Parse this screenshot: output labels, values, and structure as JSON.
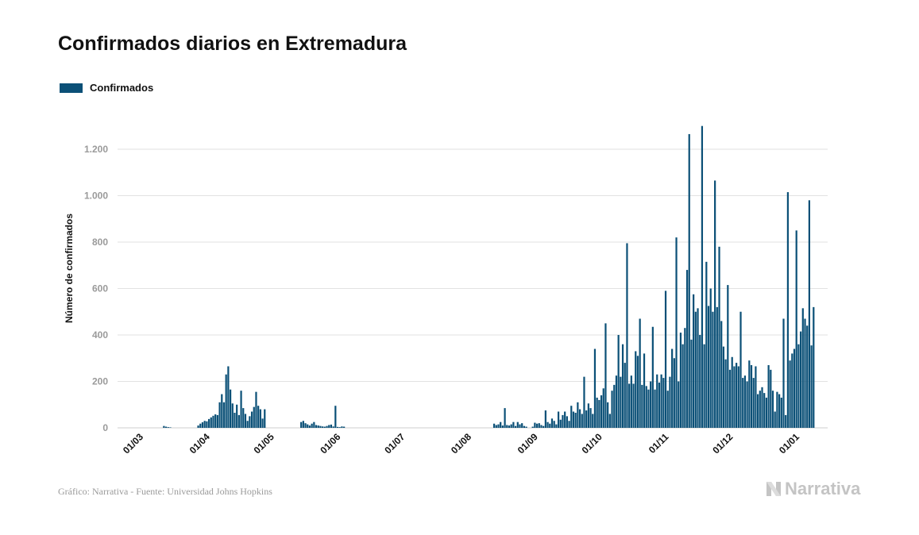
{
  "title": "Confirmados diarios en Extremadura",
  "legend": {
    "label": "Confirmados"
  },
  "colors": {
    "bar": "#0b5077",
    "grid": "#e2e2e2",
    "muted": "#9a9a9a"
  },
  "source": "Gráfico: Narrativa - Fuente: Universidad Johns Hopkins",
  "brand": {
    "name": "Narrativa",
    "icon": "narrativa-logo-icon"
  },
  "chart_data": {
    "type": "bar",
    "title": "Confirmados diarios en Extremadura",
    "ylabel": "Número de confirmados",
    "xlabel": "",
    "ylim": [
      0,
      1340
    ],
    "grid": true,
    "legend_position": "top-left",
    "yticks": [
      0,
      200,
      400,
      600,
      800,
      1000,
      1200
    ],
    "ytick_labels": [
      "0",
      "200",
      "400",
      "600",
      "800",
      "1.000",
      "1.200"
    ],
    "xticks": [
      "01/03",
      "01/04",
      "01/05",
      "01/06",
      "01/07",
      "01/08",
      "01/09",
      "01/10",
      "01/11",
      "01/12",
      "01/01"
    ],
    "x_start": "2020-03-01",
    "series": [
      {
        "name": "Confirmados",
        "values": [
          0,
          0,
          0,
          0,
          0,
          0,
          0,
          0,
          0,
          0,
          0,
          0,
          8,
          5,
          3,
          2,
          0,
          0,
          0,
          0,
          0,
          0,
          0,
          0,
          0,
          0,
          0,
          0,
          10,
          18,
          24,
          30,
          28,
          38,
          45,
          52,
          58,
          55,
          110,
          145,
          110,
          230,
          265,
          165,
          105,
          65,
          100,
          55,
          160,
          85,
          60,
          30,
          50,
          70,
          90,
          155,
          95,
          80,
          40,
          80,
          0,
          0,
          0,
          0,
          0,
          0,
          0,
          0,
          0,
          0,
          0,
          0,
          0,
          0,
          0,
          0,
          25,
          30,
          20,
          15,
          10,
          18,
          25,
          12,
          10,
          8,
          6,
          5,
          8,
          12,
          14,
          6,
          95,
          4,
          3,
          6,
          5,
          0,
          0,
          0,
          0,
          0,
          0,
          0,
          0,
          0,
          0,
          0,
          0,
          0,
          0,
          0,
          0,
          0,
          0,
          0,
          0,
          0,
          0,
          0,
          0,
          0,
          0,
          0,
          0,
          0,
          0,
          0,
          0,
          0,
          0,
          0,
          0,
          0,
          0,
          0,
          0,
          0,
          0,
          0,
          0,
          0,
          0,
          0,
          0,
          0,
          0,
          0,
          0,
          0,
          0,
          0,
          0,
          0,
          0,
          0,
          0,
          0,
          0,
          0,
          0,
          0,
          0,
          0,
          0,
          0,
          18,
          12,
          15,
          25,
          10,
          85,
          12,
          10,
          15,
          25,
          8,
          25,
          15,
          20,
          8,
          5,
          0,
          0,
          5,
          22,
          18,
          20,
          12,
          8,
          75,
          25,
          18,
          40,
          30,
          15,
          70,
          35,
          55,
          70,
          50,
          30,
          95,
          70,
          65,
          110,
          80,
          60,
          220,
          75,
          105,
          85,
          60,
          340,
          130,
          120,
          140,
          170,
          450,
          110,
          60,
          160,
          185,
          225,
          400,
          220,
          360,
          280,
          795,
          190,
          225,
          190,
          330,
          310,
          470,
          185,
          320,
          180,
          165,
          200,
          435,
          165,
          230,
          195,
          230,
          215,
          590,
          160,
          220,
          340,
          300,
          820,
          200,
          410,
          360,
          430,
          680,
          1265,
          380,
          575,
          500,
          515,
          400,
          1300,
          360,
          715,
          525,
          600,
          500,
          1065,
          520,
          780,
          460,
          350,
          295,
          615,
          250,
          305,
          265,
          280,
          265,
          500,
          215,
          225,
          200,
          290,
          270,
          215,
          265,
          145,
          160,
          175,
          150,
          130,
          270,
          250,
          160,
          70,
          155,
          145,
          130,
          470,
          55,
          1015,
          290,
          320,
          340,
          850,
          360,
          415,
          515,
          470,
          440,
          980,
          355,
          520
        ]
      }
    ]
  }
}
